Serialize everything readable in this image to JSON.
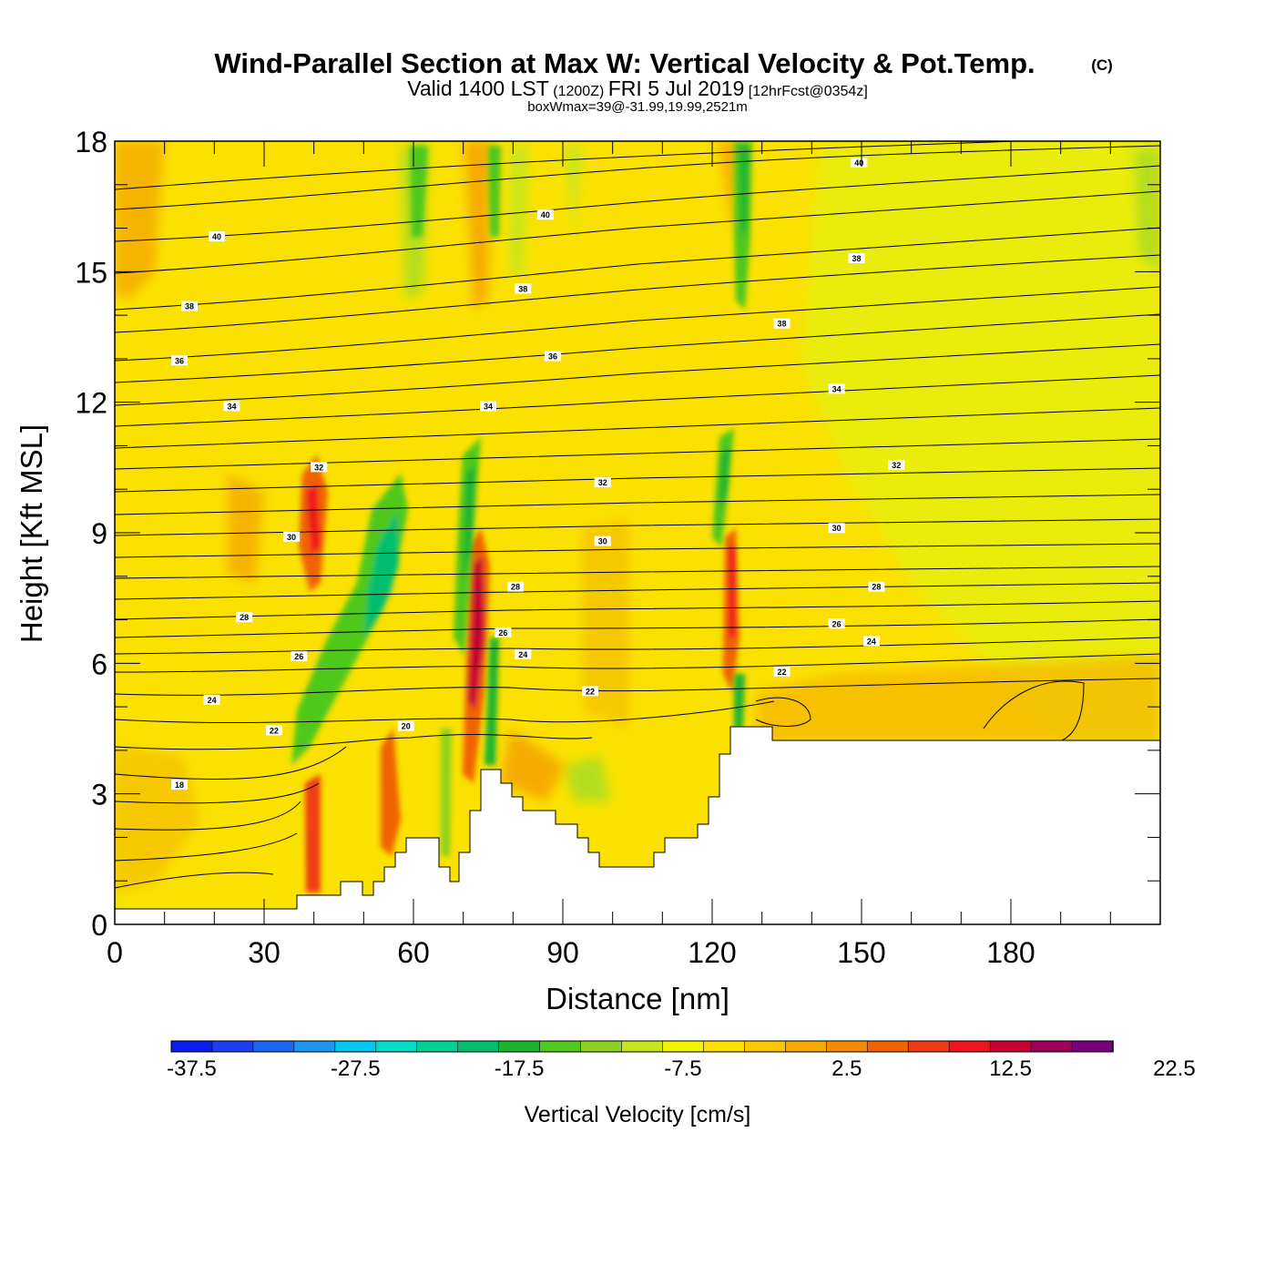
{
  "header": {
    "title": "Wind-Parallel Section at Max W: Vertical Velocity & Pot.Temp.",
    "copyright": "(C)",
    "valid_prefix": "Valid 1400 LST",
    "valid_utc": "(1200Z)",
    "valid_date": "FRI 5 Jul 2019",
    "forecast": "[12hrFcst@0354z]",
    "box_info": "boxWmax=39@-31.99,19.99,2521m"
  },
  "chart_data": {
    "type": "heatmap",
    "title": "Wind-Parallel Section at Max W: Vertical Velocity & Pot.Temp.",
    "xlabel": "Distance [nm]",
    "ylabel": "Height [Kft MSL]",
    "xlim": [
      0,
      210
    ],
    "ylim": [
      0,
      18
    ],
    "x_ticks": [
      0,
      30,
      60,
      90,
      120,
      150,
      180
    ],
    "x_tick_labels": [
      "0",
      "30",
      "60",
      "90",
      "120",
      "150",
      "180"
    ],
    "y_ticks": [
      0,
      3,
      6,
      9,
      12,
      15,
      18
    ],
    "y_tick_labels": [
      "0",
      "3",
      "6",
      "9",
      "12",
      "15",
      "18"
    ],
    "colorbar": {
      "label": "Vertical Velocity [cm/s]",
      "tick_labels": [
        "-37.5",
        "-27.5",
        "-17.5",
        "-7.5",
        "2.5",
        "12.5",
        "22.5"
      ],
      "colors": [
        "#0a1cf0",
        "#1e3cf0",
        "#1e64f5",
        "#1e96f0",
        "#00c8f0",
        "#00dcc8",
        "#00d296",
        "#00be6e",
        "#1eb432",
        "#50c81e",
        "#8cd21e",
        "#c8e61e",
        "#f0f500",
        "#fae100",
        "#fac800",
        "#f5aa00",
        "#f58c00",
        "#f06400",
        "#f03c14",
        "#f0141e",
        "#c80032",
        "#a0005a",
        "#780078"
      ]
    },
    "theta_contour_labels": [
      {
        "text": "40",
        "x": 20.5,
        "y": 15.8
      },
      {
        "text": "40",
        "x": 86.5,
        "y": 16.3
      },
      {
        "text": "40",
        "x": 149.5,
        "y": 17.5
      },
      {
        "text": "38",
        "x": 15,
        "y": 14.2
      },
      {
        "text": "38",
        "x": 82,
        "y": 14.6
      },
      {
        "text": "38",
        "x": 149,
        "y": 15.3
      },
      {
        "text": "38",
        "x": 134,
        "y": 13.8
      },
      {
        "text": "36",
        "x": 13,
        "y": 12.95
      },
      {
        "text": "36",
        "x": 88,
        "y": 13.05
      },
      {
        "text": "34",
        "x": 23.5,
        "y": 11.9
      },
      {
        "text": "34",
        "x": 75,
        "y": 11.9
      },
      {
        "text": "34",
        "x": 145,
        "y": 12.3
      },
      {
        "text": "32",
        "x": 41,
        "y": 10.5
      },
      {
        "text": "32",
        "x": 98,
        "y": 10.15
      },
      {
        "text": "32",
        "x": 157,
        "y": 10.55
      },
      {
        "text": "30",
        "x": 35.5,
        "y": 8.9
      },
      {
        "text": "30",
        "x": 98,
        "y": 8.8
      },
      {
        "text": "30",
        "x": 145,
        "y": 9.1
      },
      {
        "text": "28",
        "x": 26,
        "y": 7.05
      },
      {
        "text": "28",
        "x": 80.5,
        "y": 7.75
      },
      {
        "text": "28",
        "x": 153,
        "y": 7.75
      },
      {
        "text": "26",
        "x": 37,
        "y": 6.15
      },
      {
        "text": "26",
        "x": 78,
        "y": 6.7
      },
      {
        "text": "26",
        "x": 145,
        "y": 6.9
      },
      {
        "text": "24",
        "x": 19.5,
        "y": 5.15
      },
      {
        "text": "24",
        "x": 82,
        "y": 6.2
      },
      {
        "text": "24",
        "x": 152,
        "y": 6.5
      },
      {
        "text": "22",
        "x": 32,
        "y": 4.45
      },
      {
        "text": "22",
        "x": 95.5,
        "y": 5.35
      },
      {
        "text": "22",
        "x": 134,
        "y": 5.8
      },
      {
        "text": "20",
        "x": 58.5,
        "y": 4.55
      },
      {
        "text": "18",
        "x": 13,
        "y": 3.2
      }
    ]
  }
}
